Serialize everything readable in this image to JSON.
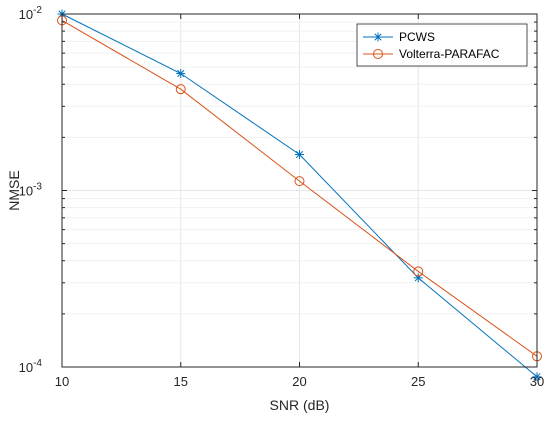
{
  "chart_data": {
    "type": "line",
    "title": "",
    "xlabel": "SNR (dB)",
    "ylabel": "NMSE",
    "yscale": "log",
    "xlim": [
      10,
      30
    ],
    "ylim": [
      0.0001,
      0.01
    ],
    "xticks": [
      10,
      15,
      20,
      25,
      30
    ],
    "xtick_labels": [
      "10",
      "15",
      "20",
      "25",
      "30"
    ],
    "yticks": [
      0.0001,
      0.001,
      0.01
    ],
    "ytick_labels": [
      {
        "base": "10",
        "exp": "-4"
      },
      {
        "base": "10",
        "exp": "-3"
      },
      {
        "base": "10",
        "exp": "-2"
      }
    ],
    "grid": true,
    "legend_position": "top-right",
    "x": [
      10,
      15,
      20,
      25,
      30
    ],
    "series": [
      {
        "name": "PCWS",
        "color": "#0072BD",
        "marker": "asterisk",
        "values": [
          0.01,
          0.0046,
          0.0016,
          0.00032,
          8.8e-05
        ]
      },
      {
        "name": "Volterra-PARAFAC",
        "color": "#D95319",
        "marker": "circle",
        "values": [
          0.0092,
          0.00375,
          0.00113,
          0.000348,
          0.000115
        ]
      }
    ]
  }
}
